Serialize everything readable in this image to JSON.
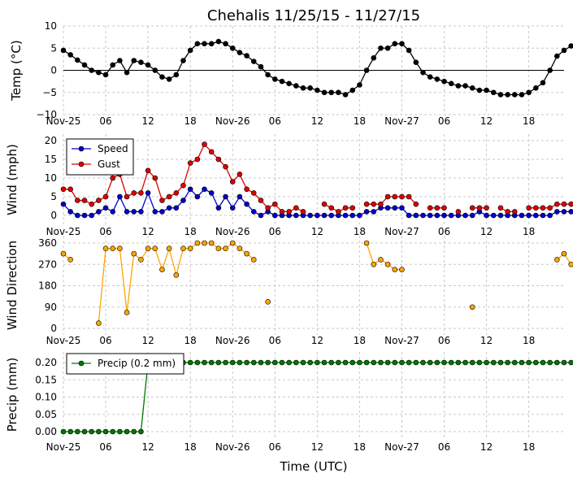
{
  "chart_data": {
    "type": "line",
    "title": "Chehalis 11/25/15 - 11/27/15",
    "xlabel": "Time (UTC)",
    "x_unit": "hours since 2015-11-25 00:00 UTC",
    "xlim": [
      0,
      71
    ],
    "xtick_labels": [
      "Nov-25",
      "06",
      "12",
      "18",
      "Nov-26",
      "06",
      "12",
      "18",
      "Nov-27",
      "06",
      "12",
      "18"
    ],
    "colors": {
      "temp": "#000000",
      "speed": "#0000cc",
      "gust": "#dd0000",
      "direction": "#ffa500",
      "precip": "#007700"
    },
    "panels": [
      {
        "name": "temp",
        "ylabel": "Temp (°C)",
        "ylim": [
          -10,
          10
        ],
        "ytick_labels": [
          "10",
          "5",
          "0",
          "−5",
          "−10"
        ],
        "zero_line": true,
        "series": [
          {
            "name": "",
            "values": [
              4.5,
              3.5,
              2.3,
              1.2,
              0,
              -0.5,
              -1,
              1.2,
              2.2,
              -0.5,
              2.2,
              1.8,
              1.2,
              0,
              -1.5,
              -2,
              -1,
              2.2,
              4.5,
              6,
              6,
              6,
              6.5,
              6,
              5,
              4,
              3.3,
              2,
              0.8,
              -1,
              -2,
              -2.5,
              -3,
              -3.5,
              -4,
              -4,
              -4.5,
              -5,
              -5,
              -5,
              -5.5,
              -4.5,
              -3.3,
              0,
              2.8,
              5,
              5,
              6,
              6,
              4.5,
              1.8,
              -0.5,
              -1.5,
              -2,
              -2.5,
              -3,
              -3.5,
              -3.5,
              -4,
              -4.5,
              -4.5,
              -5,
              -5.5,
              -5.5,
              -5.5,
              -5.5,
              -5,
              -4,
              -2.8,
              0,
              3.2,
              4.5,
              5.5,
              5.5
            ]
          }
        ]
      },
      {
        "name": "wind",
        "ylabel": "Wind (mph)",
        "ylim": [
          0,
          20
        ],
        "ytick_labels": [
          "20",
          "15",
          "10",
          "5",
          "0"
        ],
        "legend": {
          "position": "upper-left",
          "entries": [
            "Speed",
            "Gust"
          ]
        },
        "series": [
          {
            "name": "Speed",
            "values": [
              3,
              1,
              0,
              0,
              0,
              1,
              2,
              1,
              5,
              1,
              1,
              1,
              6,
              1,
              1,
              2,
              2,
              4,
              7,
              5,
              7,
              6,
              2,
              5,
              2,
              5,
              3,
              1,
              0,
              1,
              0,
              0,
              0,
              0,
              0,
              0,
              0,
              0,
              0,
              0,
              0,
              0,
              0,
              1,
              1,
              2,
              2,
              2,
              2,
              0,
              0,
              0,
              0,
              0,
              0,
              0,
              0,
              0,
              0,
              1,
              0,
              0,
              0,
              0,
              0,
              0,
              0,
              0,
              0,
              0,
              1,
              1,
              1,
              1
            ]
          },
          {
            "name": "Gust",
            "values": [
              7,
              7,
              4,
              4,
              3,
              4,
              5,
              10,
              11,
              5,
              6,
              6,
              12,
              10,
              4,
              5,
              6,
              8,
              14,
              15,
              19,
              17,
              15,
              13,
              9,
              11,
              7,
              6,
              4,
              2,
              3,
              1,
              1,
              2,
              1,
              null,
              null,
              3,
              2,
              1,
              2,
              2,
              null,
              3,
              3,
              3,
              5,
              5,
              5,
              5,
              3,
              null,
              2,
              2,
              2,
              null,
              1,
              null,
              2,
              2,
              2,
              null,
              2,
              1,
              1,
              null,
              2,
              2,
              2,
              2,
              3,
              3,
              3,
              4
            ]
          }
        ]
      },
      {
        "name": "direction",
        "ylabel": "Wind Direction",
        "ylim": [
          0,
          360
        ],
        "ytick_labels": [
          "360",
          "270",
          "180",
          "90",
          "0"
        ],
        "series": [
          {
            "name": "",
            "values": [
              315,
              290,
              null,
              null,
              null,
              22,
              337,
              337,
              337,
              67,
              315,
              290,
              337,
              337,
              248,
              337,
              225,
              337,
              337,
              360,
              360,
              360,
              337,
              337,
              360,
              337,
              315,
              290,
              null,
              112,
              null,
              null,
              null,
              null,
              null,
              null,
              null,
              null,
              null,
              null,
              null,
              null,
              null,
              360,
              270,
              290,
              270,
              248,
              248,
              null,
              null,
              null,
              null,
              null,
              null,
              null,
              null,
              null,
              90,
              null,
              null,
              null,
              null,
              null,
              null,
              null,
              null,
              null,
              null,
              null,
              290,
              315,
              270,
              248
            ]
          }
        ]
      },
      {
        "name": "precip",
        "ylabel": "Precip (mm)",
        "ylim": [
          0,
          0.2
        ],
        "ytick_labels": [
          "0.20",
          "0.15",
          "0.10",
          "0.05",
          "0.00"
        ],
        "legend": {
          "position": "upper-left",
          "entries": [
            "Precip (0.2 mm)"
          ]
        },
        "series": [
          {
            "name": "Precip (0.2 mm)",
            "values": [
              0,
              0,
              0,
              0,
              0,
              0,
              0,
              0,
              0,
              0,
              0,
              0,
              0.2,
              0.2,
              0.2,
              0.2,
              0.2,
              0.2,
              0.2,
              0.2,
              0.2,
              0.2,
              0.2,
              0.2,
              0.2,
              0.2,
              0.2,
              0.2,
              0.2,
              0.2,
              0.2,
              0.2,
              0.2,
              0.2,
              0.2,
              0.2,
              0.2,
              0.2,
              0.2,
              0.2,
              0.2,
              0.2,
              0.2,
              0.2,
              0.2,
              0.2,
              0.2,
              0.2,
              0.2,
              0.2,
              0.2,
              0.2,
              0.2,
              0.2,
              0.2,
              0.2,
              0.2,
              0.2,
              0.2,
              0.2,
              0.2,
              0.2,
              0.2,
              0.2,
              0.2,
              0.2,
              0.2,
              0.2,
              0.2,
              0.2,
              0.2,
              0.2,
              0.2,
              0.2
            ]
          }
        ]
      }
    ]
  }
}
